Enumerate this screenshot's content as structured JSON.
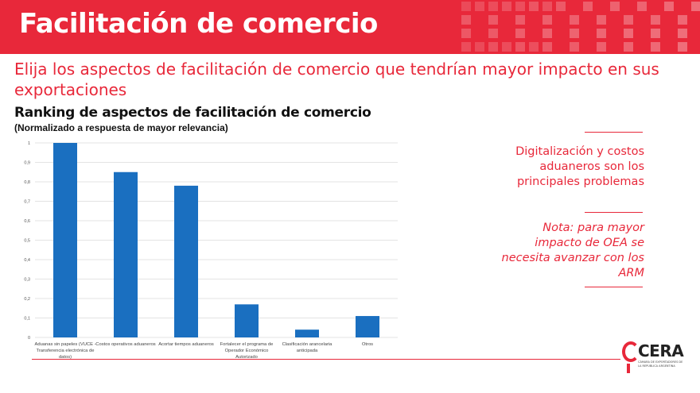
{
  "header": {
    "title": "Facilitación de comercio"
  },
  "subtitle": "Elija los aspectos de facilitación de comercio que tendrían mayor impacto en sus exportaciones",
  "chart_data": {
    "type": "bar",
    "title": "Ranking de aspectos de facilitación de comercio",
    "subtitle": "(Normalizado a respuesta de mayor relevancia)",
    "categories": [
      [
        "Aduanas sin papeles (VUCE -",
        "Transferencia electrónica de",
        "datos)"
      ],
      [
        "Costos operativos aduaneros"
      ],
      [
        "Acortar tiempos aduaneros"
      ],
      [
        "Fortalecer el programa de",
        "Operador Económico",
        "Autorizado"
      ],
      [
        "Clasificación arancelaria",
        "anticipada"
      ],
      [
        "Otros"
      ]
    ],
    "values": [
      1.0,
      0.85,
      0.78,
      0.17,
      0.04,
      0.11
    ],
    "ylim": [
      0,
      1
    ],
    "yticks": [
      "0",
      "0,1",
      "0,2",
      "0,3",
      "0,4",
      "0,5",
      "0,6",
      "0,7",
      "0,8",
      "0,9",
      "1"
    ],
    "grid": true,
    "bar_color": "#1a6fc0"
  },
  "side_panel": {
    "main": "Digitalización y costos aduaneros son los principales problemas",
    "note": "Nota: para mayor impacto de OEA se necesita avanzar con los ARM"
  },
  "logo": {
    "text": "CERA",
    "small": "CÁMARA DE EXPORTADORES DE LA REPÚBLICA ARGENTINA"
  },
  "colors": {
    "accent": "#e8283a",
    "bar": "#1a6fc0"
  }
}
